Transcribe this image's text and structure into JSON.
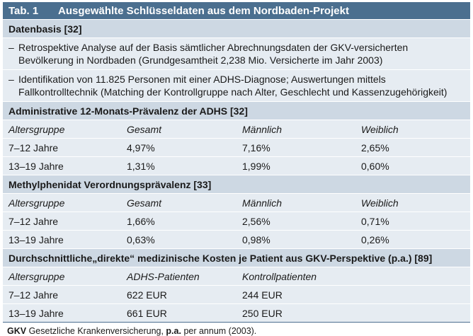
{
  "title": {
    "number": "Tab. 1",
    "text": "Ausgewählte Schlüsseldaten aus dem Nordbaden-Projekt"
  },
  "datenbasis": {
    "heading": "Datenbasis [32]",
    "bullets": [
      "Retrospektive Analyse auf der Basis sämtlicher Abrechnungsdaten der GKV-versicherten Bevölkerung in Nordbaden (Grundgesamtheit 2,238 Mio. Versicherte im Jahr 2003)",
      "Identifikation von 11.825 Personen mit einer ADHS-Diagnose; Auswertungen mittels Fallkontrolltechnik (Matching der Kontrollgruppe nach Alter, Geschlecht und Kassenzugehörigkeit)"
    ],
    "dash": "–"
  },
  "sections": [
    {
      "heading": "Administrative 12-Monats-Prävalenz der ADHS [32]",
      "columns": [
        "Altersgruppe",
        "Gesamt",
        "Männlich",
        "Weiblich"
      ],
      "rows": [
        [
          "7–12 Jahre",
          "4,97%",
          "7,16%",
          "2,65%"
        ],
        [
          "13–19 Jahre",
          "1,31%",
          "1,99%",
          "0,60%"
        ]
      ]
    },
    {
      "heading": "Methylphenidat Verordnungsprävalenz [33]",
      "columns": [
        "Altersgruppe",
        "Gesamt",
        "Männlich",
        "Weiblich"
      ],
      "rows": [
        [
          "7–12 Jahre",
          "1,66%",
          "2,56%",
          "0,71%"
        ],
        [
          "13–19 Jahre",
          "0,63%",
          "0,98%",
          "0,26%"
        ]
      ]
    },
    {
      "heading": "Durchschnittliche„direkte“ medizinische Kosten je Patient aus GKV-Perspektive (p.a.) [89]",
      "columns": [
        "Altersgruppe",
        "ADHS-Patienten",
        "Kontrollpatienten",
        ""
      ],
      "rows": [
        [
          "7–12 Jahre",
          "622 EUR",
          "244 EUR",
          ""
        ],
        [
          "13–19 Jahre",
          "661 EUR",
          "250 EUR",
          ""
        ]
      ]
    }
  ],
  "footnote": {
    "abbr1": "GKV",
    "def1": " Gesetzliche Krankenversicherung, ",
    "abbr2": "p.a.",
    "def2": " per annum (2003)."
  },
  "colors": {
    "title_bg": "#4b6f8f",
    "section_bg": "#cdd8e3",
    "row_bg": "#e6ecf2"
  }
}
